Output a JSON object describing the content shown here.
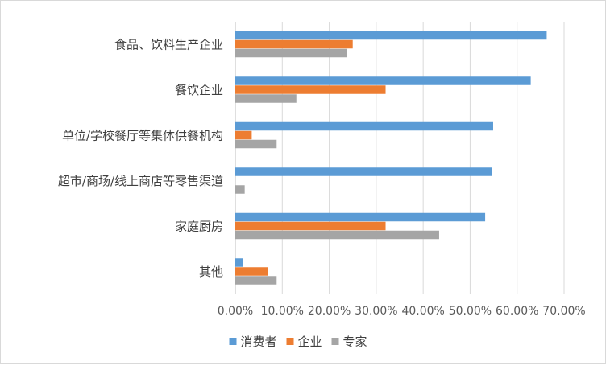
{
  "chart_data": {
    "type": "bar",
    "orientation": "horizontal",
    "categories": [
      "食品、饮料生产企业",
      "餐饮企业",
      "单位/学校餐厅等集体供餐机构",
      "超市/商场/线上商店等零售渠道",
      "家庭厨房",
      "其他"
    ],
    "series": [
      {
        "name": "消费者",
        "color": "#5B9BD5",
        "values": [
          66.3,
          62.9,
          54.9,
          54.6,
          53.2,
          1.6
        ]
      },
      {
        "name": "企业",
        "color": "#ED7D31",
        "values": [
          25.0,
          32.0,
          3.5,
          0.0,
          32.0,
          7.0
        ]
      },
      {
        "name": "专家",
        "color": "#A5A5A5",
        "values": [
          23.8,
          13.0,
          8.8,
          2.0,
          43.4,
          8.8
        ]
      }
    ],
    "xlim": [
      0,
      70
    ],
    "x_ticks": [
      0,
      10,
      20,
      30,
      40,
      50,
      60,
      70
    ],
    "x_tick_labels": [
      "0.00%",
      "10.00%",
      "20.00%",
      "30.00%",
      "40.00%",
      "50.00%",
      "60.00%",
      "70.00%"
    ],
    "grid": true,
    "legend_position": "bottom"
  }
}
